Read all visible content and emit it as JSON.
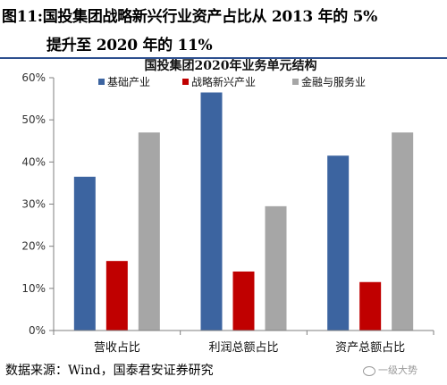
{
  "figure": {
    "title_line1": "图11:国投集团战略新兴行业资产占比从 2013 年的 5%",
    "title_line2": "提升至 2020 年的 11%",
    "source": "数据来源：Wind，国泰君安证券研究",
    "watermark": "一级大势"
  },
  "chart_data": {
    "type": "bar",
    "title": "国投集团2020年业务单元结构",
    "categories": [
      "营收占比",
      "利润总额占比",
      "资产总额占比"
    ],
    "series": [
      {
        "name": "基础产业",
        "values": [
          36.5,
          56.5,
          41.5
        ],
        "color": "#3c64a0"
      },
      {
        "name": "战略新兴产业",
        "values": [
          16.5,
          14.0,
          11.5
        ],
        "color": "#c00000"
      },
      {
        "name": "金融与服务业",
        "values": [
          47.0,
          29.5,
          47.0
        ],
        "color": "#a6a6a6"
      }
    ],
    "ylim": [
      0,
      60
    ],
    "yticks": [
      0,
      10,
      20,
      30,
      40,
      50,
      60
    ],
    "ytick_labels": [
      "0%",
      "10%",
      "20%",
      "30%",
      "40%",
      "50%",
      "60%"
    ],
    "xlabel": "",
    "ylabel": "",
    "legend_position": "top",
    "grid": false
  }
}
